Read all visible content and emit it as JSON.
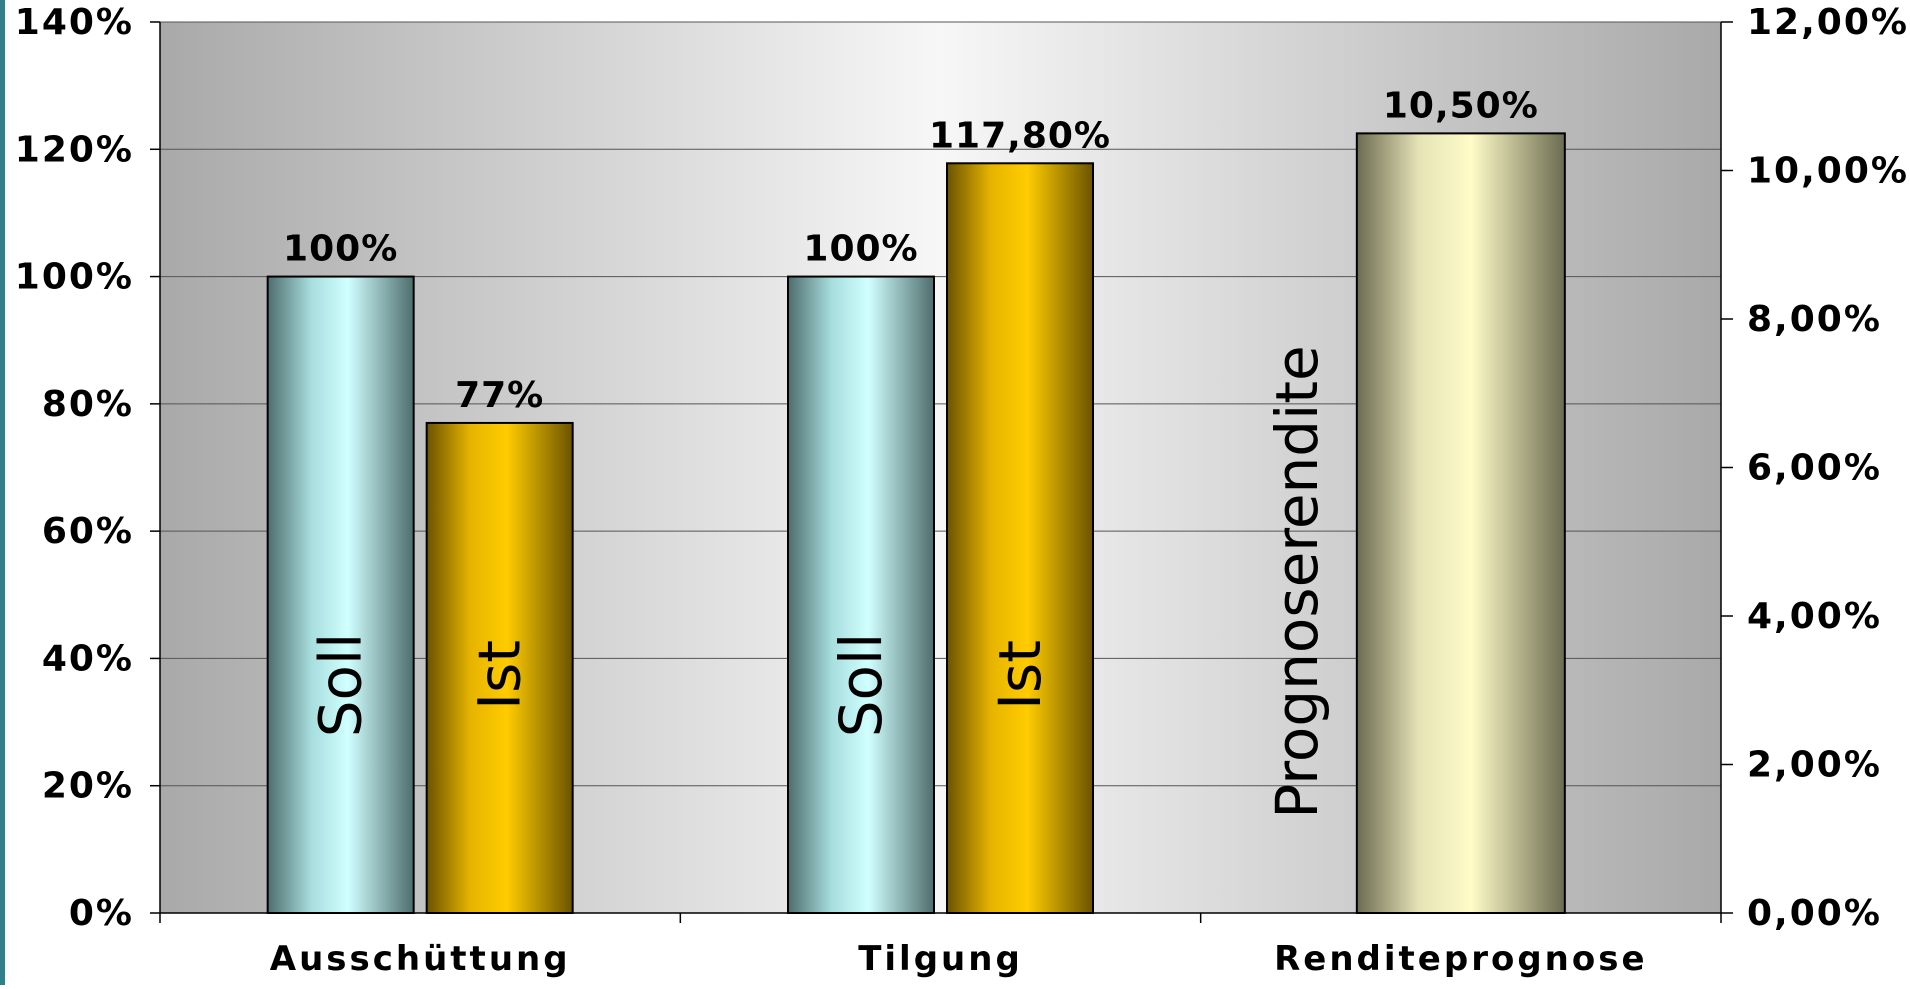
{
  "chart_data": {
    "type": "bar",
    "categories": [
      "Ausschüttung",
      "Tilgung",
      "Renditeprognose"
    ],
    "series": [
      {
        "axis": "left",
        "bars": [
          {
            "category": "Ausschüttung",
            "name": "Soll",
            "value": 100,
            "data_label": "100%",
            "color": "#c8f6f6"
          },
          {
            "category": "Ausschüttung",
            "name": "Ist",
            "value": 77,
            "data_label": "77%",
            "color": "#f5c200"
          },
          {
            "category": "Tilgung",
            "name": "Soll",
            "value": 100,
            "data_label": "100%",
            "color": "#c8f6f6"
          },
          {
            "category": "Tilgung",
            "name": "Ist",
            "value": 117.8,
            "data_label": "117,80%",
            "color": "#f5c200"
          }
        ]
      },
      {
        "axis": "right",
        "bars": [
          {
            "category": "Renditeprognose",
            "name": "Prognoserendite",
            "value": 10.5,
            "data_label": "10,50%",
            "color": "#fbf7c8"
          }
        ]
      }
    ],
    "y_left": {
      "min": 0,
      "max": 140,
      "ticks": [
        "0%",
        "20%",
        "40%",
        "60%",
        "80%",
        "100%",
        "120%",
        "140%"
      ]
    },
    "y_right": {
      "min": 0,
      "max": 12,
      "ticks": [
        "0,00%",
        "2,00%",
        "4,00%",
        "6,00%",
        "8,00%",
        "10,00%",
        "12,00%"
      ]
    },
    "grid": true,
    "legend": "none",
    "plot_background": "gray-white-gray gradient"
  }
}
